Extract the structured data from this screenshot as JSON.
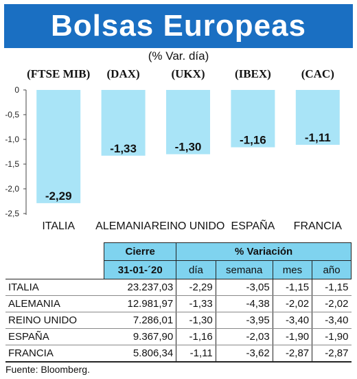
{
  "header": {
    "title": "Bolsas Europeas",
    "subtitle": "(% Var. día)"
  },
  "chart_data": {
    "type": "bar",
    "categories": [
      "ITALIA",
      "ALEMANIA",
      "REINO UNIDO",
      "ESPAÑA",
      "FRANCIA"
    ],
    "indices": [
      "(FTSE MIB)",
      "(DAX)",
      "(UKX)",
      "(IBEX)",
      "(CAC)"
    ],
    "values": [
      -2.29,
      -1.33,
      -1.3,
      -1.16,
      -1.11
    ],
    "value_labels": [
      "-2,29",
      "-1,33",
      "-1,30",
      "-1,16",
      "-1,11"
    ],
    "yticks": [
      "0",
      "-0,5",
      "-1,0",
      "-1,5",
      "-2,0",
      "-2,5"
    ],
    "ylim": [
      -2.5,
      0
    ],
    "bar_color": "#a9e4f7"
  },
  "table": {
    "header_cierre": "Cierre",
    "header_variacion": "% Variación",
    "date": "31-01-´20",
    "columns": [
      "día",
      "semana",
      "mes",
      "año"
    ],
    "rows": [
      {
        "name": "ITALIA",
        "cierre": "23.237,03",
        "dia": "-2,29",
        "semana": "-3,05",
        "mes": "-1,15",
        "ano": "-1,15"
      },
      {
        "name": "ALEMANIA",
        "cierre": "12.981,97",
        "dia": "-1,33",
        "semana": "-4,38",
        "mes": "-2,02",
        "ano": "-2,02"
      },
      {
        "name": "REINO UNIDO",
        "cierre": "7.286,01",
        "dia": "-1,30",
        "semana": "-3,95",
        "mes": "-3,40",
        "ano": "-3,40"
      },
      {
        "name": "ESPAÑA",
        "cierre": "9.367,90",
        "dia": "-1,16",
        "semana": "-2,03",
        "mes": "-1,90",
        "ano": "-1,90"
      },
      {
        "name": "FRANCIA",
        "cierre": "5.806,34",
        "dia": "-1,11",
        "semana": "-3,62",
        "mes": "-2,87",
        "ano": "-2,87"
      }
    ],
    "header_color": "#7fd3ef"
  },
  "source": "Fuente: Bloomberg."
}
